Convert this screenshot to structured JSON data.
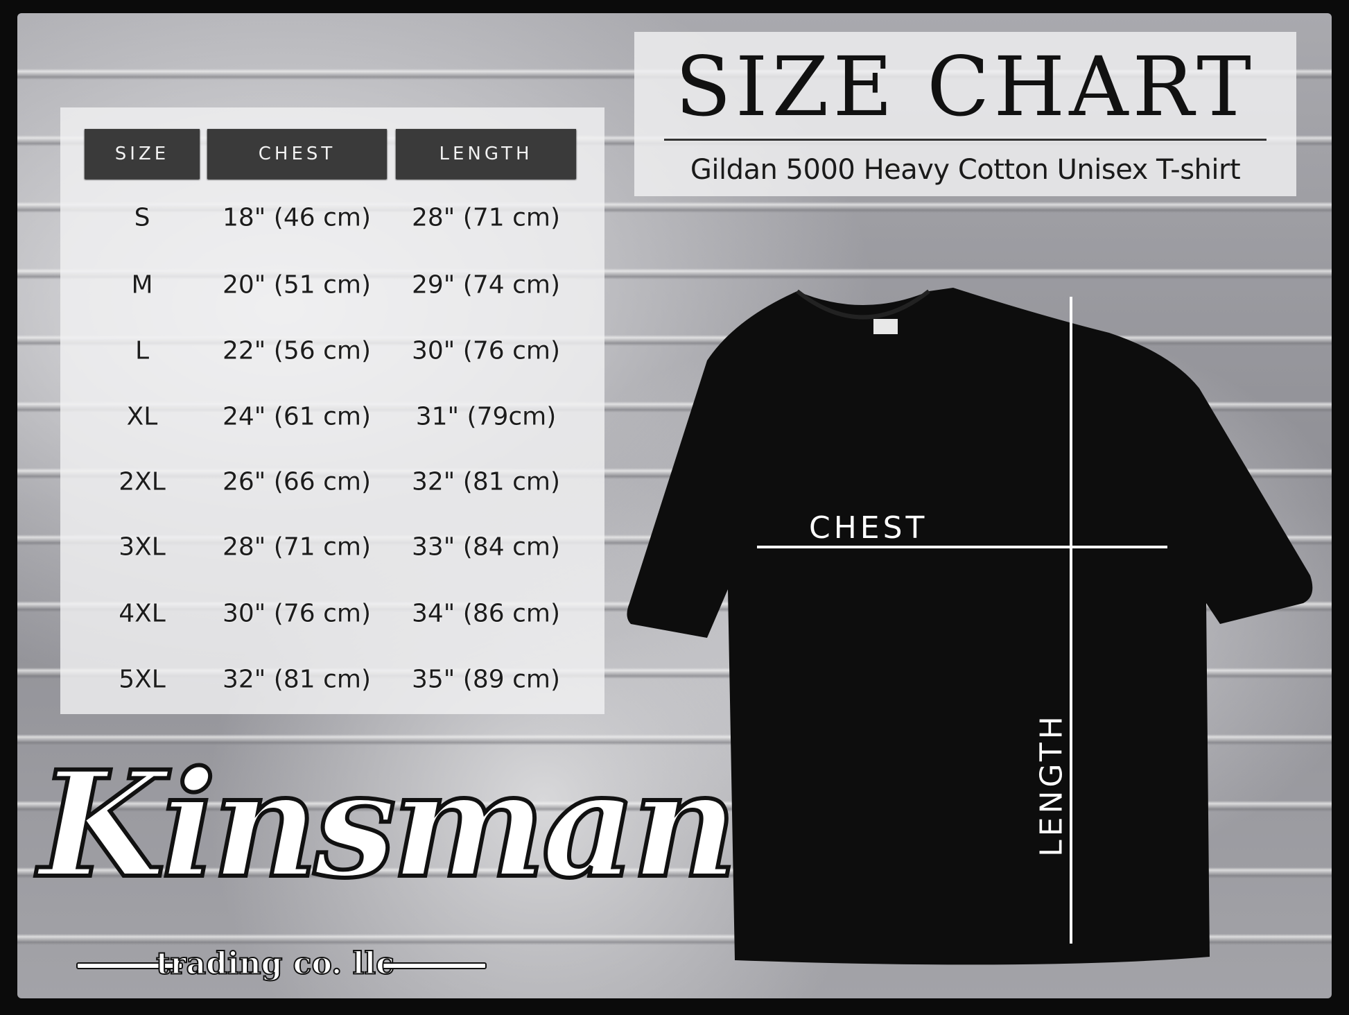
{
  "title": "SIZE CHART",
  "subtitle": "Gildan 5000 Heavy Cotton Unisex T-shirt",
  "table": {
    "headers": [
      "SIZE",
      "CHEST",
      "LENGTH"
    ],
    "rows": [
      [
        "S",
        "18\" (46 cm)",
        "28\" (71 cm)"
      ],
      [
        "M",
        "20\" (51 cm)",
        "29\" (74 cm)"
      ],
      [
        "L",
        "22\" (56 cm)",
        "30\" (76 cm)"
      ],
      [
        "XL",
        "24\" (61 cm)",
        "31\" (79cm)"
      ],
      [
        "2XL",
        "26\" (66 cm)",
        "32\" (81 cm)"
      ],
      [
        "3XL",
        "28\" (71 cm)",
        "33\" (84 cm)"
      ],
      [
        "4XL",
        "30\" (76 cm)",
        "34\" (86 cm)"
      ],
      [
        "5XL",
        "32\" (81 cm)",
        "35\" (89 cm)"
      ]
    ]
  },
  "diagram": {
    "chest_label": "CHEST",
    "length_label": "LENGTH",
    "shirt_color": "#0d0d0d"
  },
  "logo": {
    "name": "Kinsman",
    "tagline": "trading co. llc"
  }
}
